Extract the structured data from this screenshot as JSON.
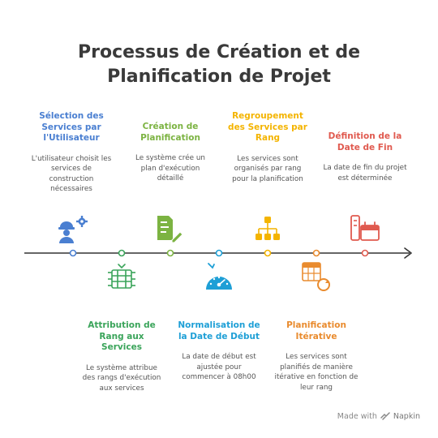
{
  "title": {
    "line1": "Processus de Création et de",
    "line2": "Planification de Projet"
  },
  "steps": [
    {
      "title": "Sélection des Services par l'Utilisateur",
      "description": "L'utilisateur choisit les services de construction nécessaires",
      "color": "#4a7fd1",
      "icon": "worker-gear-icon"
    },
    {
      "title": "Attribution de Rang aux Services",
      "description": "Le système attribue des rangs d'exécution aux services",
      "color": "#3aa45a",
      "icon": "service-list-icon"
    },
    {
      "title": "Création de Planification",
      "description": "Le système crée un plan d'exécution détaillé",
      "color": "#7cb342",
      "icon": "document-edit-icon"
    },
    {
      "title": "Normalisation de la Date de Début",
      "description": "La date de début est ajustée pour commencer à 08h00",
      "color": "#1e9fd6",
      "icon": "gauge-icon"
    },
    {
      "title": "Regroupement des Services par Rang",
      "description": "Les services sont organisés par rang pour la planification",
      "color": "#f4b400",
      "icon": "hierarchy-icon"
    },
    {
      "title": "Planification Itérative",
      "description": "Les services sont planifiés de manière itérative en fonction de leur rang",
      "color": "#e98b2e",
      "icon": "calendar-refresh-icon"
    },
    {
      "title": "Définition de la Date de Fin",
      "description": "La date de fin du projet est déterminée",
      "color": "#e05a4f",
      "icon": "calendar-end-icon"
    }
  ],
  "footer": {
    "prefix": "Made with",
    "brand": "Napkin"
  }
}
